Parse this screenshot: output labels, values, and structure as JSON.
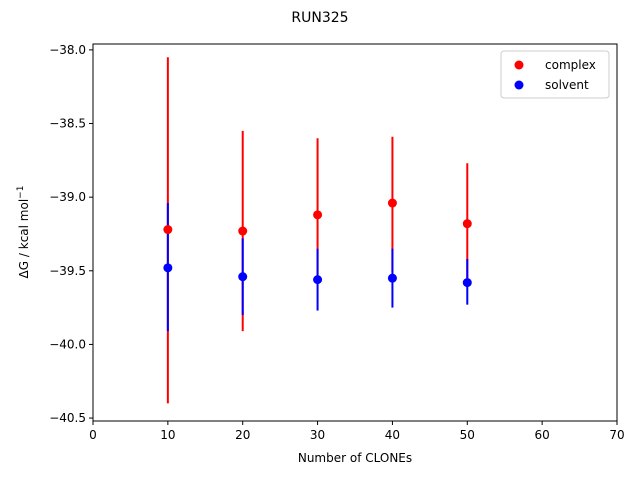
{
  "chart_data": {
    "type": "scatter",
    "title": "RUN325",
    "xlabel": "Number of CLONEs",
    "ylabel_main": "ΔG / kcal mol",
    "ylabel_sup": "−1",
    "xlim": [
      0,
      70
    ],
    "ylim": [
      -40.52,
      -37.96
    ],
    "xticks": [
      0,
      10,
      20,
      30,
      40,
      50,
      60,
      70
    ],
    "xtick_labels": [
      "0",
      "10",
      "20",
      "30",
      "40",
      "50",
      "60",
      "70"
    ],
    "yticks": [
      -38.0,
      -38.5,
      -39.0,
      -39.5,
      -40.0,
      -40.5
    ],
    "ytick_labels": [
      "−38.0",
      "−38.5",
      "−39.0",
      "−39.5",
      "−40.0",
      "−40.5"
    ],
    "grid": false,
    "legend_position": "top-right",
    "series": [
      {
        "name": "complex",
        "color": "#ff0000",
        "x": [
          10,
          20,
          30,
          40,
          50
        ],
        "y": [
          -39.22,
          -39.23,
          -39.12,
          -39.04,
          -39.18
        ],
        "yerr_low": [
          -40.4,
          -39.91,
          -39.57,
          -39.51,
          -39.59
        ],
        "yerr_high": [
          -38.05,
          -38.55,
          -38.6,
          -38.59,
          -38.77
        ]
      },
      {
        "name": "solvent",
        "color": "#0000ff",
        "x": [
          10,
          20,
          30,
          40,
          50
        ],
        "y": [
          -39.48,
          -39.54,
          -39.56,
          -39.55,
          -39.58
        ],
        "yerr_low": [
          -39.91,
          -39.8,
          -39.77,
          -39.75,
          -39.73
        ],
        "yerr_high": [
          -39.04,
          -39.28,
          -39.35,
          -39.35,
          -39.42
        ]
      }
    ]
  }
}
